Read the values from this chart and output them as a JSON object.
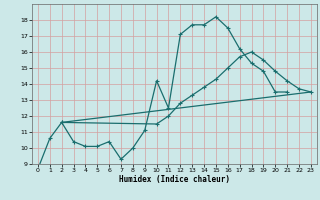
{
  "xlabel": "Humidex (Indice chaleur)",
  "bg_color": "#cce8e8",
  "grid_color": "#d4a0a0",
  "line_color": "#1a6e6e",
  "xlim": [
    -0.5,
    23.5
  ],
  "ylim": [
    9,
    19
  ],
  "yticks": [
    9,
    10,
    11,
    12,
    13,
    14,
    15,
    16,
    17,
    18
  ],
  "xticks": [
    0,
    1,
    2,
    3,
    4,
    5,
    6,
    7,
    8,
    9,
    10,
    11,
    12,
    13,
    14,
    15,
    16,
    17,
    18,
    19,
    20,
    21,
    22,
    23
  ],
  "line1_x": [
    0,
    1,
    2,
    3,
    4,
    5,
    6,
    7,
    8,
    9,
    10,
    11,
    12,
    13,
    14,
    15,
    16,
    17,
    18,
    19,
    20,
    21
  ],
  "line1_y": [
    8.7,
    10.6,
    11.6,
    10.4,
    10.1,
    10.1,
    10.4,
    9.3,
    10.0,
    11.1,
    14.2,
    12.5,
    17.1,
    17.7,
    17.7,
    18.2,
    17.5,
    16.2,
    15.3,
    14.8,
    13.5,
    13.5
  ],
  "line2_x": [
    2,
    10,
    11,
    12,
    13,
    14,
    15,
    16,
    17,
    18,
    19,
    20,
    21,
    22,
    23
  ],
  "line2_y": [
    11.6,
    11.5,
    12.0,
    12.8,
    13.3,
    13.8,
    14.3,
    15.0,
    15.7,
    16.0,
    15.5,
    14.8,
    14.2,
    13.7,
    13.5
  ],
  "line3_x": [
    2,
    23
  ],
  "line3_y": [
    11.6,
    13.5
  ]
}
